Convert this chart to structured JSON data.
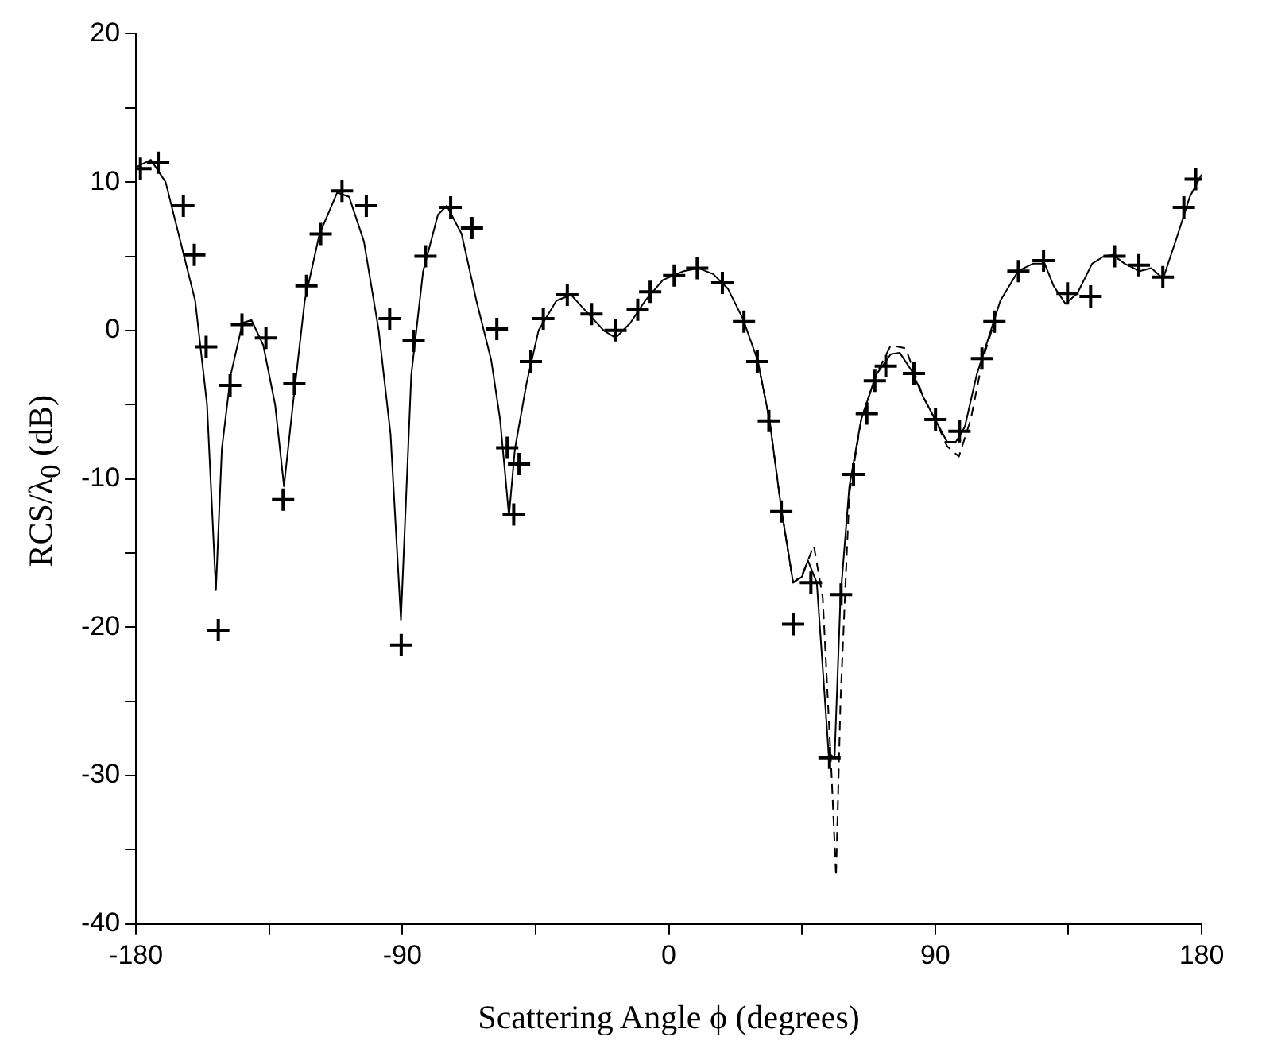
{
  "chart_data": {
    "type": "line",
    "xlabel": "Scattering Angle ϕ (degrees)",
    "ylabel": "RCS/λ$_{0}$ (dB)",
    "xlim": [
      -180,
      180
    ],
    "ylim": [
      -40,
      20
    ],
    "xticks": [
      -180,
      {
        "value": -135,
        "label": null
      },
      -90,
      {
        "value": -45,
        "label": null
      },
      0,
      {
        "value": 45,
        "label": null
      },
      90,
      {
        "value": 135,
        "label": null
      },
      180
    ],
    "yticks": [
      -40,
      {
        "value": -35,
        "label": null
      },
      -30,
      {
        "value": -25,
        "label": null
      },
      -20,
      {
        "value": -15,
        "label": null
      },
      -10,
      {
        "value": -5,
        "label": null
      },
      0,
      {
        "value": 5,
        "label": null
      },
      10,
      {
        "value": 15,
        "label": null
      },
      20
    ],
    "grid": false,
    "legend": false,
    "series": [
      {
        "color": "#000000",
        "marker": "none",
        "line_style": "solid",
        "x": [
          -180,
          -175,
          -170,
          -165,
          -160,
          -156,
          -153,
          -151,
          -148,
          -144,
          -141,
          -137,
          -133,
          -130,
          -127,
          -123,
          -118,
          -112,
          -108,
          -103,
          -98,
          -94,
          -90.5,
          -87,
          -83,
          -78,
          -75,
          -70,
          -65,
          -60,
          -57,
          -54,
          -52,
          -48,
          -44,
          -38,
          -33,
          -28,
          -22,
          -18,
          -13,
          -8,
          -2,
          5,
          10,
          15,
          20,
          25,
          30,
          34,
          38,
          42,
          45,
          47,
          50,
          54,
          56,
          58,
          61,
          65,
          70,
          75,
          78,
          82,
          86,
          90,
          94,
          97,
          100,
          104,
          108,
          112,
          118,
          123,
          127,
          130,
          134,
          138,
          143,
          147,
          150,
          154,
          159,
          163,
          167,
          172,
          176,
          180
        ],
        "values": [
          11,
          11.5,
          10,
          6,
          2,
          -5,
          -17.5,
          -8,
          -3,
          0.5,
          0.7,
          -1,
          -5,
          -10.5,
          -5,
          2,
          6.5,
          9.3,
          9,
          6,
          0,
          -7,
          -19.5,
          -3,
          4,
          7.8,
          8.4,
          6.5,
          2,
          -2,
          -6,
          -12.5,
          -8,
          -3.5,
          0,
          2,
          2.4,
          1.3,
          0,
          -0.5,
          0.5,
          2,
          3.4,
          4,
          4.2,
          3.8,
          2.8,
          0.8,
          -2,
          -6,
          -12,
          -17,
          -16.6,
          -15.5,
          -17,
          -28.5,
          -28.8,
          -18,
          -10.5,
          -6,
          -3,
          -1.6,
          -1.5,
          -2.7,
          -4.5,
          -6,
          -7.5,
          -7.5,
          -6.5,
          -3,
          -0.5,
          2,
          4,
          4.5,
          4.5,
          3,
          1.8,
          2.5,
          4.5,
          5,
          5.1,
          4.5,
          4,
          4.2,
          3.5,
          6.5,
          9,
          10.5
        ]
      },
      {
        "color": "#000000",
        "marker": "none",
        "line_style": "dashed",
        "x": [
          30,
          34,
          38,
          42,
          45,
          49,
          52,
          55,
          56.5,
          58,
          61,
          65,
          70,
          75,
          80,
          86,
          90,
          94,
          98,
          102,
          106,
          110
        ],
        "values": [
          -2,
          -6,
          -12,
          -17,
          -16.5,
          -14.5,
          -18,
          -30,
          -36.8,
          -25,
          -11,
          -6,
          -3,
          -1,
          -1.2,
          -4.5,
          -6,
          -7.8,
          -8.5,
          -6,
          -2,
          0.6
        ]
      },
      {
        "type": "scatter",
        "color": "#000000",
        "marker": "cross",
        "x": [
          -178.5,
          -172.5,
          -164,
          -160.3,
          -156.3,
          -152.2,
          -148.2,
          -144.2,
          -136.1,
          -130.3,
          -126.5,
          -122.4,
          -117.6,
          -110.4,
          -102.2,
          -94.3,
          -90.4,
          -86.2,
          -82.2,
          -73.7,
          -66.5,
          -58.1,
          -54.6,
          -52.4,
          -50.6,
          -46.6,
          -42.4,
          -34.3,
          -26.1,
          -18,
          -10.5,
          -6.3,
          1.8,
          9.6,
          18.1,
          25.4,
          29.9,
          33.8,
          38,
          42,
          48,
          54.3,
          58.2,
          62.4,
          66.9,
          69.6,
          73.3,
          82.8,
          90.1,
          98.2,
          105.8,
          110,
          118.1,
          126.6,
          134.7,
          142.5,
          150.6,
          158.8,
          166.9,
          174,
          178
        ],
        "values": [
          10.9,
          11.3,
          8.4,
          5.1,
          -1.1,
          -20.2,
          -3.7,
          0.4,
          -0.5,
          -11.4,
          -3.6,
          3,
          6.5,
          9.4,
          8.4,
          0.8,
          -21.2,
          -0.7,
          5,
          8.3,
          6.9,
          0.1,
          -7.9,
          -12.4,
          -9,
          -2.1,
          0.8,
          2.4,
          1.1,
          0,
          1.4,
          2.6,
          3.7,
          4.2,
          3.2,
          0.6,
          -2.1,
          -6.1,
          -12.2,
          -19.8,
          -17,
          -28.8,
          -17.8,
          -9.7,
          -5.6,
          -3.4,
          -2.4,
          -2.9,
          -6,
          -6.8,
          -1.9,
          0.6,
          4,
          4.7,
          2.5,
          2.3,
          5,
          4.4,
          3.6,
          8.3,
          10.2
        ]
      }
    ]
  }
}
